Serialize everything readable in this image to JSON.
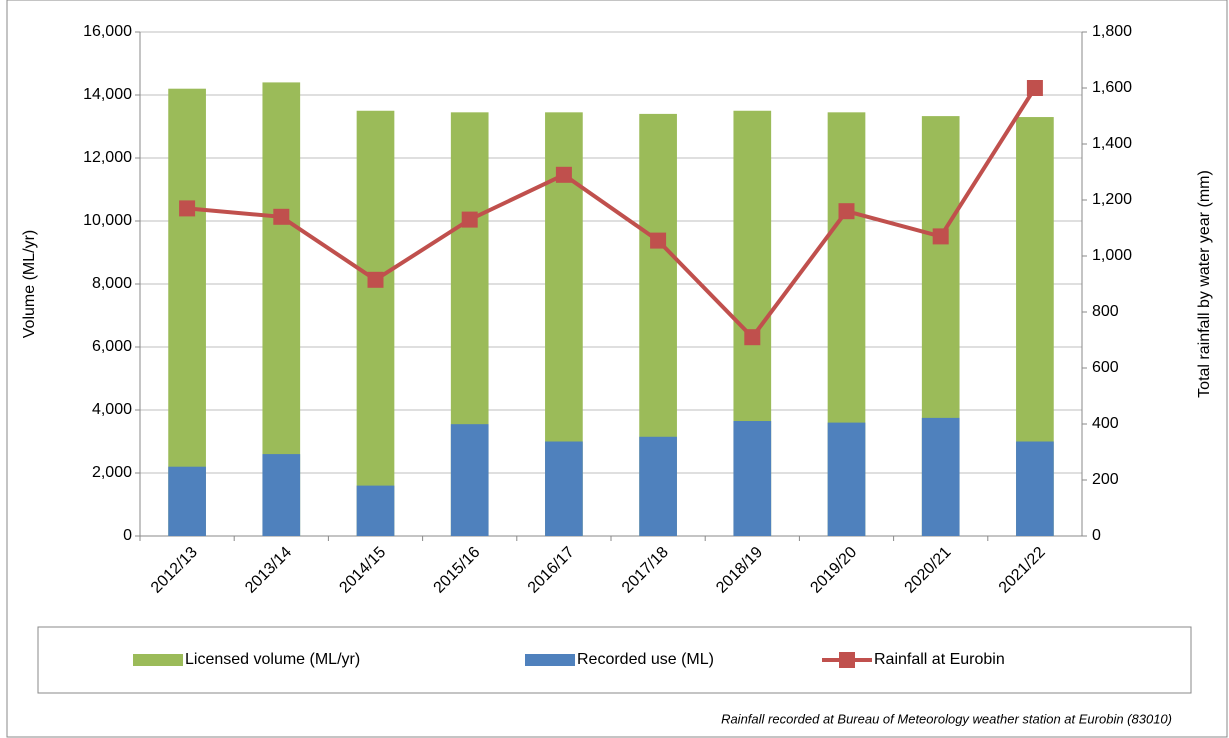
{
  "chart_data": {
    "type": "bar_line",
    "categories": [
      "2012/13",
      "2013/14",
      "2014/15",
      "2015/16",
      "2016/17",
      "2017/18",
      "2018/19",
      "2019/20",
      "2020/21",
      "2021/22"
    ],
    "series": [
      {
        "name": "Licensed volume (ML/yr)",
        "color": "#9bbb59",
        "type": "bar",
        "values": [
          14200,
          14400,
          13500,
          13450,
          13450,
          13400,
          13500,
          13450,
          13330,
          13300
        ]
      },
      {
        "name": "Recorded use (ML)",
        "color": "#4f81bd",
        "type": "bar",
        "values": [
          2200,
          2600,
          1600,
          3550,
          3000,
          3150,
          3650,
          3600,
          3750,
          3000
        ]
      },
      {
        "name": "Rainfall at Eurobin",
        "color": "#c0504d",
        "type": "line",
        "axis": "y2",
        "values": [
          1170,
          1140,
          915,
          1130,
          1290,
          1055,
          710,
          1160,
          1070,
          1600
        ]
      }
    ],
    "y_label": "Volume (ML/yr)",
    "y2_label": "Total rainfall by water year (mm)",
    "ylim": [
      0,
      16000
    ],
    "yticks": [
      0,
      {
        "value": 2000,
        "label": "2,000"
      },
      {
        "value": 4000,
        "label": "4,000"
      },
      {
        "value": 6000,
        "label": "6,000"
      },
      {
        "value": 8000,
        "label": "8,000"
      },
      {
        "value": 10000,
        "label": "10,000"
      },
      {
        "value": 12000,
        "label": "12,000"
      },
      {
        "value": 14000,
        "label": "14,000"
      },
      {
        "value": 16000,
        "label": "16,000"
      }
    ],
    "y2lim": [
      0,
      1800
    ],
    "y2ticks": [
      0,
      200,
      400,
      600,
      800,
      {
        "value": 1000,
        "label": "1,000"
      },
      {
        "value": 1200,
        "label": "1,200"
      },
      {
        "value": 1400,
        "label": "1,400"
      },
      {
        "value": 1600,
        "label": "1,600"
      },
      {
        "value": 1800,
        "label": "1,800"
      }
    ],
    "grid": true,
    "legend": "bottom",
    "note": "Rainfall recorded at Bureau of Meteorology weather station at Eurobin (83010)"
  }
}
